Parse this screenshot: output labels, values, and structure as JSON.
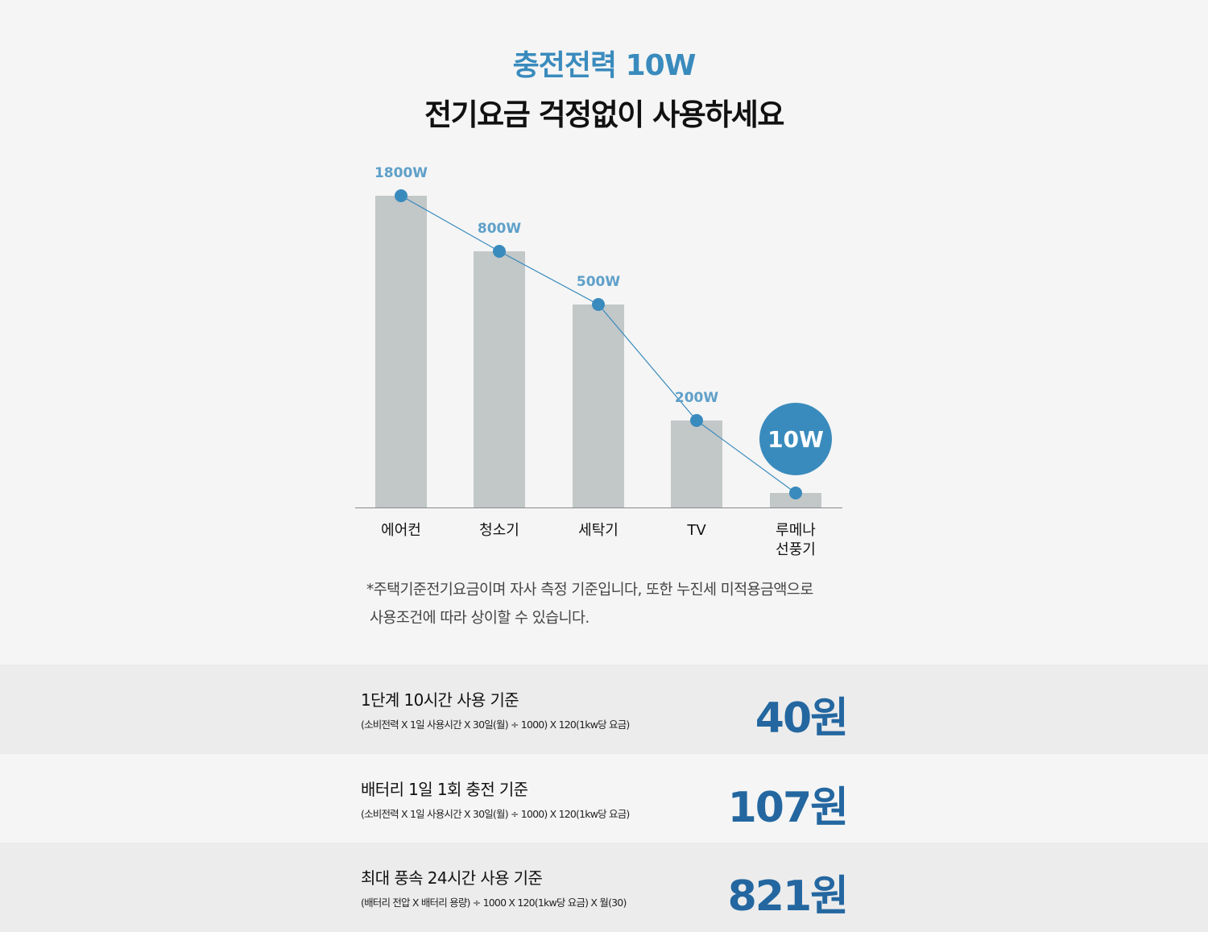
{
  "header": {
    "title": "충전전력 10W",
    "subtitle": "전기요금 걱정없이 사용하세요"
  },
  "chart_data": {
    "type": "bar",
    "categories": [
      "에어컨",
      "청소기",
      "세탁기",
      "TV",
      "루메나\n선풍기"
    ],
    "values": [
      1800,
      800,
      500,
      200,
      10
    ],
    "value_labels": [
      "1800W",
      "800W",
      "500W",
      "200W",
      "10W"
    ],
    "unit": "W",
    "line_overlay": true,
    "highlight_index": 4,
    "grid": false,
    "legend": "none",
    "title": "",
    "xlabel": "",
    "ylabel": ""
  },
  "note": {
    "line1": "*주택기준전기요금이며 자사 측정 기준입니다, 또한 누진세 미적용금액으로",
    "line2": "사용조건에 따라 상이할 수 있습니다."
  },
  "rows": [
    {
      "title": "1단계 10시간 사용 기준",
      "formula": "(소비전력 X 1일 사용시간 X 30일(월) ÷ 1000) X 120(1kw당 요금)",
      "price": "40원"
    },
    {
      "title": "배터리 1일 1회 충전 기준",
      "formula": "(소비전력 X 1일 사용시간 X 30일(월) ÷ 1000) X 120(1kw당 요금)",
      "price": "107원"
    },
    {
      "title": "최대 풍속 24시간 사용 기준",
      "formula": "(배터리 전압 X 배터리 용량) ÷ 1000 X 120(1kw당 요금) X 월(30)",
      "price": "821원"
    }
  ],
  "colors": {
    "accent": "#3a8bbd",
    "bar": "#c2c7c8",
    "price": "#2467a0",
    "value_label": "#5fa0c9"
  }
}
